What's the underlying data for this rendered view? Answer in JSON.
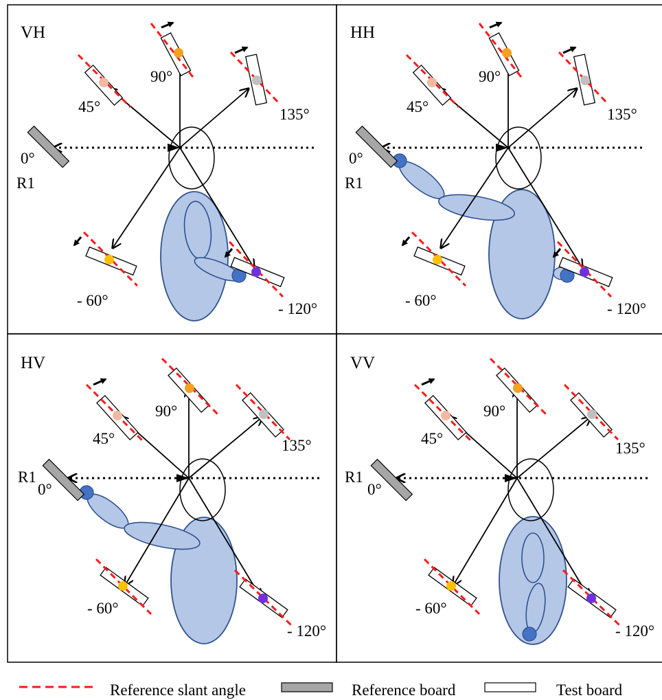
{
  "panels": [
    {
      "id": "VH",
      "title": "VH",
      "labels": {
        "a45": "45°",
        "a90": "90°",
        "a135": "135°",
        "a0": "0°",
        "r1": "R1",
        "am60": "- 60°",
        "am120": "- 120°"
      }
    },
    {
      "id": "HH",
      "title": "HH",
      "labels": {
        "a45": "45°",
        "a90": "90°",
        "a135": "135°",
        "a0": "0°",
        "r1": "R1",
        "am60": "- 60°",
        "am120": "- 120°"
      }
    },
    {
      "id": "HV",
      "title": "HV",
      "labels": {
        "a45": "45°",
        "a90": "90°",
        "a135": "135°",
        "a0": "0°",
        "r1": "R1",
        "am60": "- 60°",
        "am120": "- 120°"
      }
    },
    {
      "id": "VV",
      "title": "VV",
      "labels": {
        "a45": "45°",
        "a90": "90°",
        "a135": "135°",
        "a0": "0°",
        "r1": "R1",
        "am60": "- 60°",
        "am120": "- 120°"
      }
    }
  ],
  "legend": {
    "slant": "Reference slant angle",
    "ref_board": "Reference board",
    "test_board": "Test board"
  },
  "colors": {
    "slant_line": "#ff1a1a",
    "body_fill": "#b4c7e7",
    "body_stroke": "#2f528f",
    "hand": "#4472c4",
    "ref_board": "#a6a6a6",
    "dot_90": "#f4a020",
    "dot_45": "#f4b8a0",
    "dot_135": "#c0c0c0",
    "dot_m60": "#ffc000",
    "dot_m120": "#7030e0"
  }
}
